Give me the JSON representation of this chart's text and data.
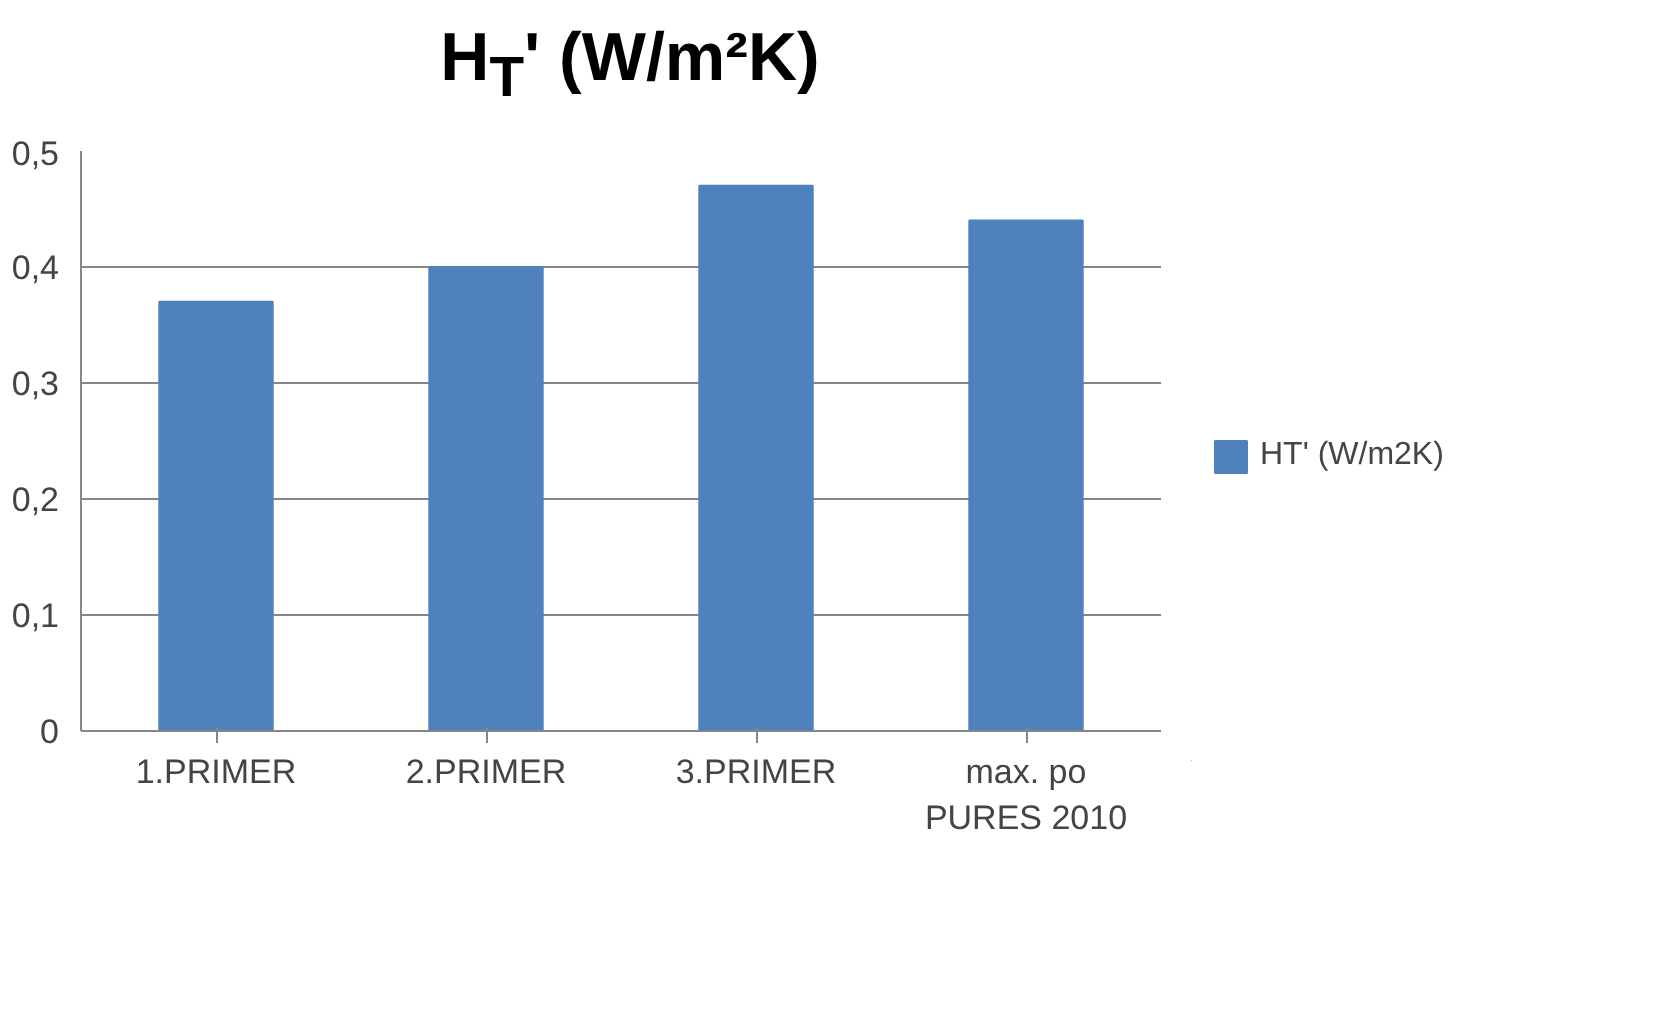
{
  "chart_data": {
    "type": "bar",
    "title": "H$_{T}$' (W/m²K)",
    "categories": [
      "1.PRIMER",
      "2.PRIMER",
      "3.PRIMER",
      "max. po PURES 2010"
    ],
    "series": [
      {
        "name": "HT' (W/m2K)",
        "color": "#4f81bd",
        "values": [
          0.37,
          0.4,
          0.47,
          0.44
        ]
      }
    ],
    "ylim": [
      0,
      0.5
    ],
    "yticks": [
      0,
      {
        "value": 0.1,
        "label": "0,1"
      },
      {
        "value": 0.2,
        "label": "0,2"
      },
      {
        "value": 0.3,
        "label": "0,3"
      },
      {
        "value": 0.4,
        "label": "0,4"
      },
      {
        "value": 0.5,
        "label": "0,5"
      }
    ],
    "grid": "y",
    "legend": "right"
  }
}
